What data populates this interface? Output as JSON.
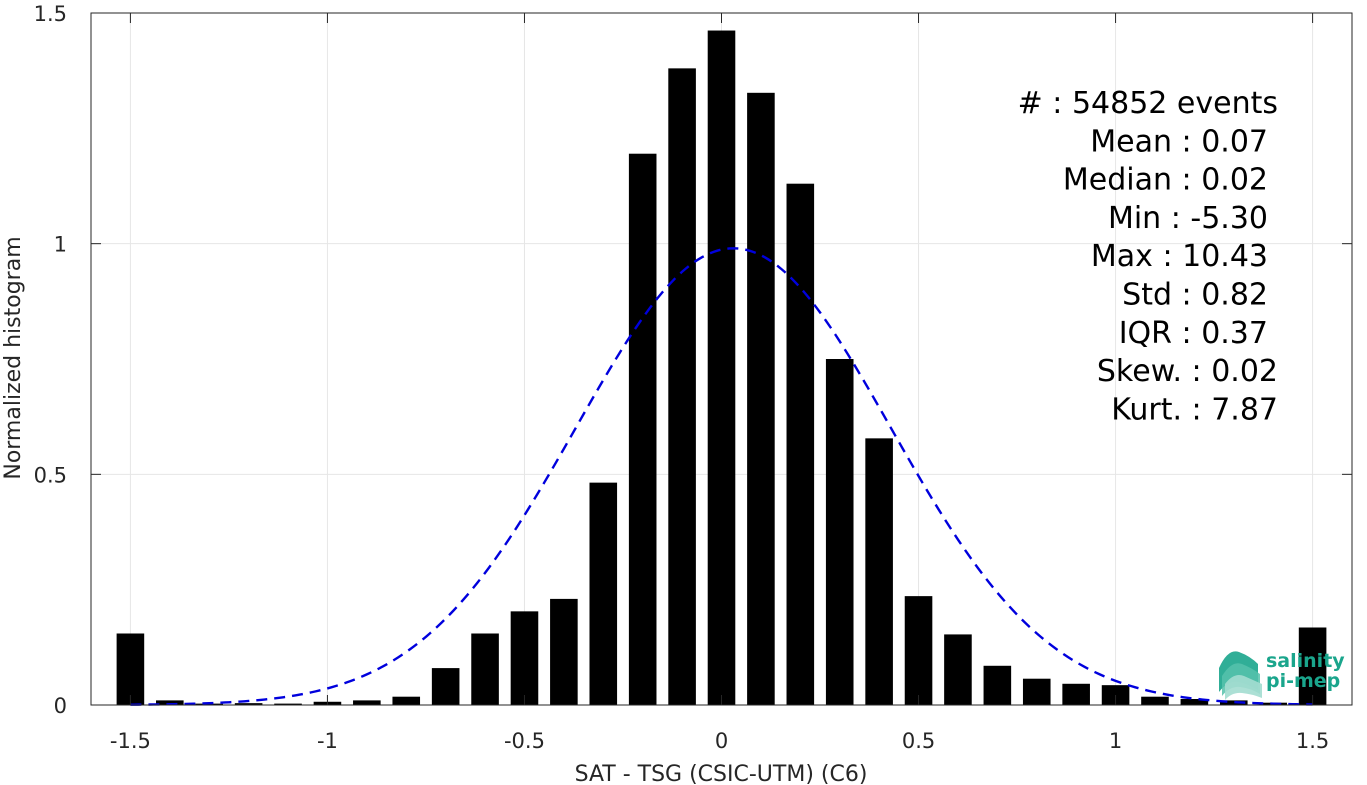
{
  "chart_data": {
    "type": "bar",
    "xlabel": "SAT - TSG (CSIC-UTM) (C6)",
    "ylabel": "Normalized histogram",
    "xlim": [
      -1.6,
      1.6
    ],
    "ylim": [
      0,
      1.5
    ],
    "x_ticks": [
      -1.5,
      -1,
      -0.5,
      0,
      0.5,
      1,
      1.5
    ],
    "x_tick_labels": [
      "-1.5",
      "-1",
      "-0.5",
      "0",
      "0.5",
      "1",
      "1.5"
    ],
    "y_ticks": [
      0,
      0.5,
      1,
      1.5
    ],
    "y_tick_labels": [
      "0",
      "0.5",
      "1",
      "1.5"
    ],
    "grid": true,
    "bar_width": 0.07,
    "bar_color": "#000000",
    "bars": {
      "x": [
        -1.5,
        -1.4,
        -1.3,
        -1.2,
        -1.1,
        -1.0,
        -0.9,
        -0.8,
        -0.7,
        -0.6,
        -0.5,
        -0.4,
        -0.3,
        -0.2,
        -0.1,
        0.0,
        0.1,
        0.2,
        0.3,
        0.4,
        0.5,
        0.6,
        0.7,
        0.8,
        0.9,
        1.0,
        1.1,
        1.2,
        1.3,
        1.4,
        1.5
      ],
      "values": [
        0.155,
        0.01,
        0.003,
        0.004,
        0.003,
        0.007,
        0.01,
        0.018,
        0.08,
        0.155,
        0.203,
        0.23,
        0.482,
        1.195,
        1.38,
        1.462,
        1.327,
        1.13,
        0.75,
        0.578,
        0.236,
        0.153,
        0.085,
        0.057,
        0.046,
        0.043,
        0.018,
        0.013,
        0.01,
        0.005,
        0.168
      ]
    },
    "fit_curve": {
      "type": "normal",
      "mean": 0.03,
      "peak": 0.99,
      "sigma": 0.4,
      "x_range": [
        -1.5,
        1.5
      ],
      "color": "#0000dd",
      "style": "dashed"
    },
    "stats": [
      "#  : 54852 events",
      "Mean : 0.07",
      "Median : 0.02",
      "Min : -5.30",
      "Max : 10.43",
      "Std : 0.82",
      "IQR : 0.37",
      "Skew. : 0.02",
      "Kurt. : 7.87"
    ],
    "logo": {
      "line1": "salinity",
      "line2": "pi-mep",
      "color": "#1aa58c"
    }
  }
}
